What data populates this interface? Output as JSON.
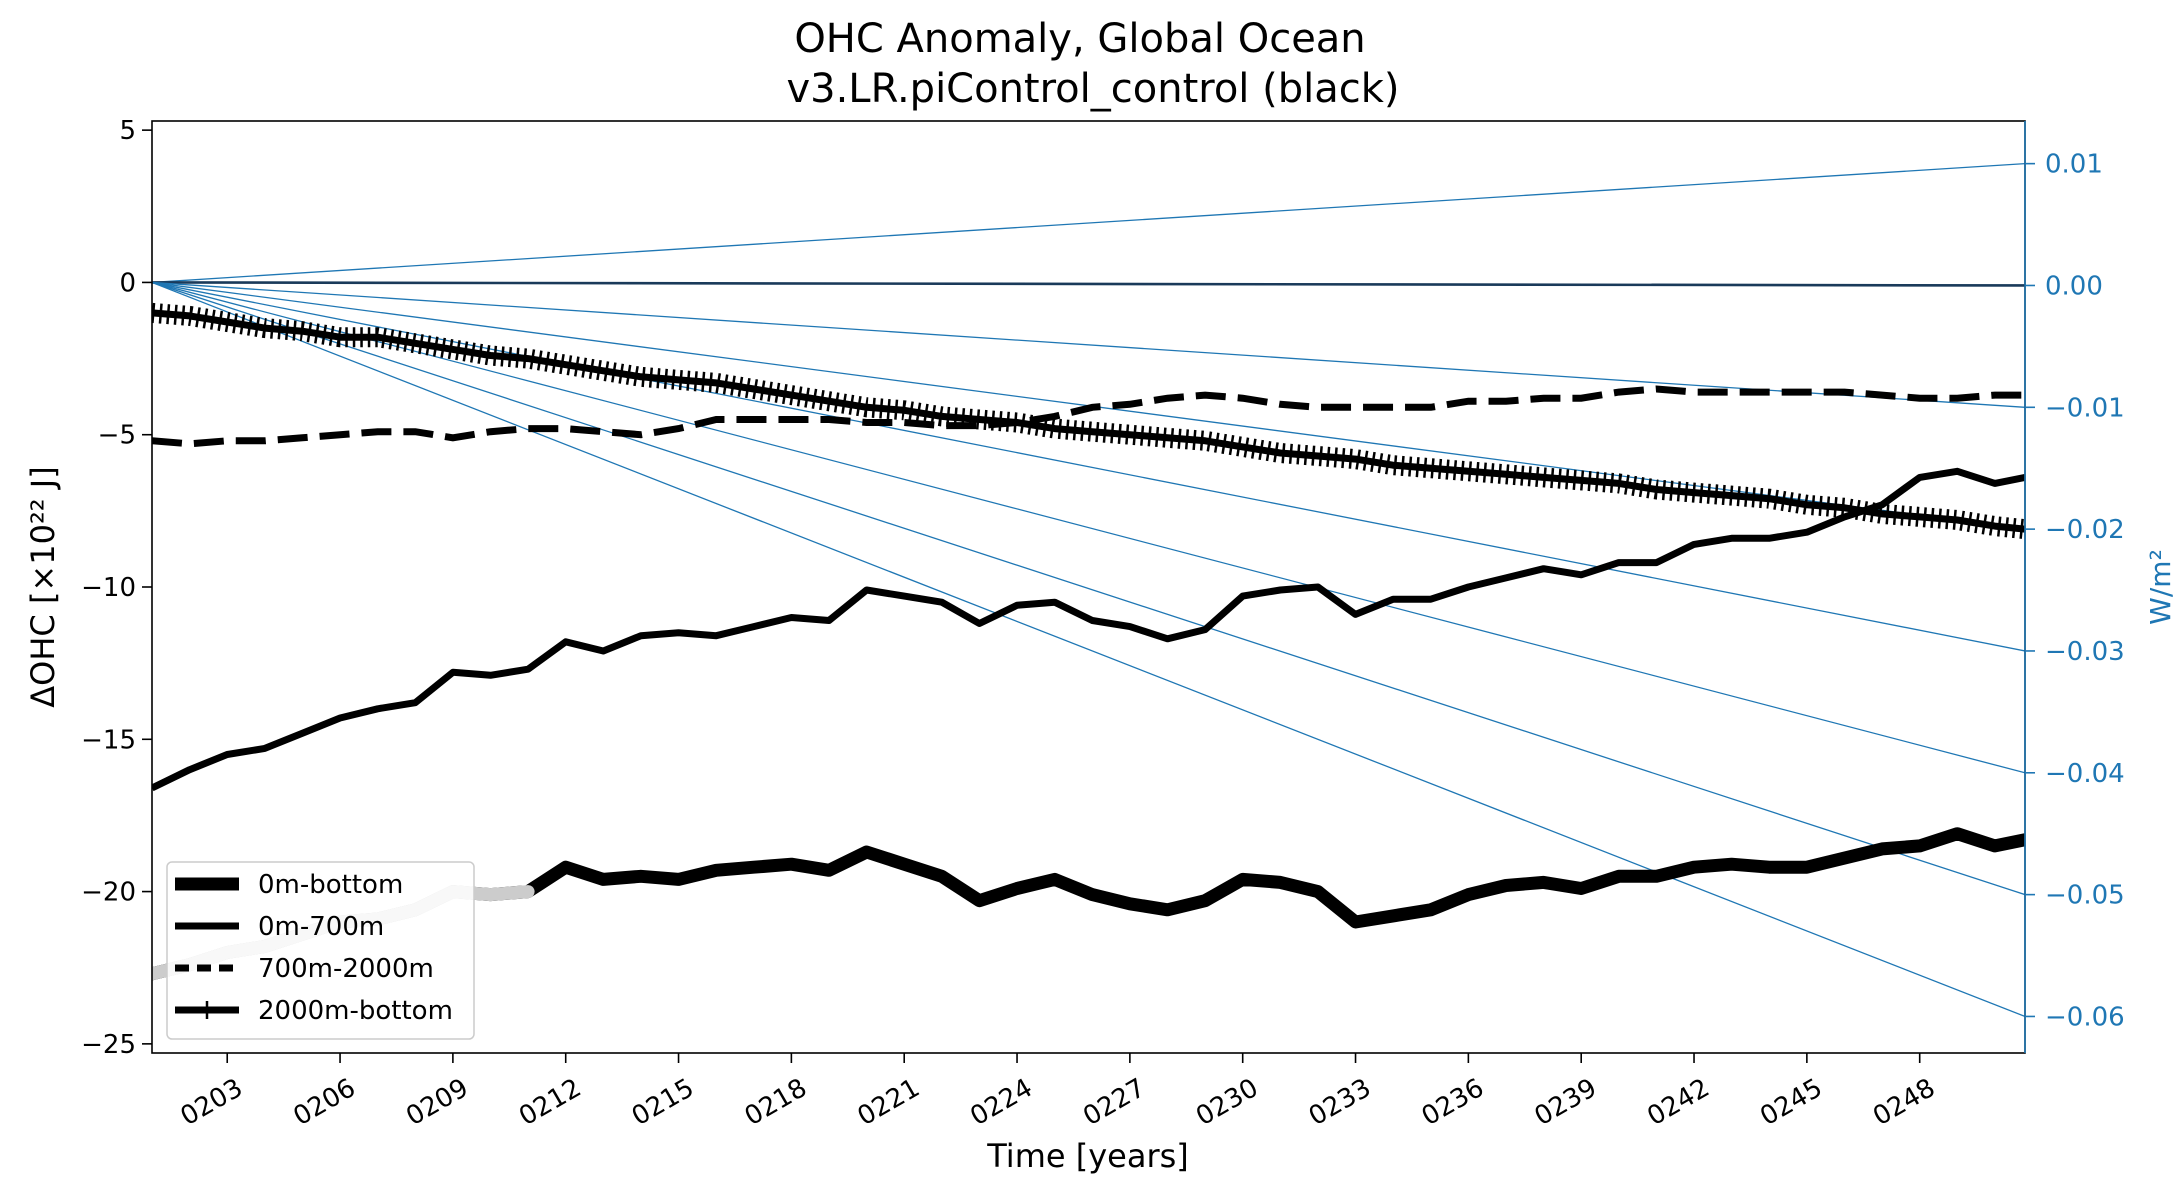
{
  "chart_data": {
    "type": "line",
    "title": "OHC Anomaly, Global Ocean",
    "subtitle": "v3.LR.piControl_control (black)",
    "xlabel": "Time [years]",
    "ylabel": "ΔOHC [×10²² J]",
    "ylabel_right": "W/m²",
    "xlim": [
      201,
      250.8
    ],
    "ylim": [
      -25.3,
      5.3
    ],
    "ylim_right": [
      -0.063,
      0.0135
    ],
    "x_ticks": [
      "0203",
      "0206",
      "0209",
      "0212",
      "0215",
      "0218",
      "0221",
      "0224",
      "0227",
      "0230",
      "0233",
      "0236",
      "0239",
      "0242",
      "0245",
      "0248"
    ],
    "x_tick_values": [
      203,
      206,
      209,
      212,
      215,
      218,
      221,
      224,
      227,
      230,
      233,
      236,
      239,
      242,
      245,
      248
    ],
    "y_ticks": [
      "5",
      "0",
      "−5",
      "−10",
      "−15",
      "−20",
      "−25"
    ],
    "y_tick_values": [
      5,
      0,
      -5,
      -10,
      -15,
      -20,
      -25
    ],
    "y_right_ticks": [
      "0.01",
      "0.00",
      "−0.01",
      "−0.02",
      "−0.03",
      "−0.04",
      "−0.05",
      "−0.06"
    ],
    "y_right_tick_values": [
      0.01,
      0.0,
      -0.01,
      -0.02,
      -0.03,
      -0.04,
      -0.05,
      -0.06
    ],
    "reference_slopes_wm2": [
      0.01,
      0.0,
      -0.01,
      -0.02,
      -0.03,
      -0.04,
      -0.05,
      -0.06
    ],
    "legend_position": "lower-left",
    "colors": {
      "series": "#000000",
      "series_shadow": "#cccccc",
      "right_axis": "#1f77b4",
      "zero_line": "#1a3a5a"
    },
    "series": [
      {
        "name": "0m-bottom",
        "style": "solid-thick",
        "x": [
          201,
          202,
          203,
          204,
          205,
          206,
          207,
          208,
          209,
          210,
          211,
          212,
          213,
          214,
          215,
          216,
          217,
          218,
          219,
          220,
          221,
          222,
          223,
          224,
          225,
          226,
          227,
          228,
          229,
          230,
          231,
          232,
          233,
          234,
          235,
          236,
          237,
          238,
          239,
          240,
          241,
          242,
          243,
          244,
          245,
          246,
          247,
          248,
          249,
          250,
          250.8
        ],
        "y": [
          -22.7,
          -22.4,
          -22.0,
          -21.8,
          -21.4,
          -21.0,
          -20.9,
          -20.6,
          -20.0,
          -20.1,
          -20.0,
          -19.2,
          -19.6,
          -19.5,
          -19.6,
          -19.3,
          -19.2,
          -19.1,
          -19.3,
          -18.7,
          -19.1,
          -19.5,
          -20.3,
          -19.9,
          -19.6,
          -20.1,
          -20.4,
          -20.6,
          -20.3,
          -19.6,
          -19.7,
          -20.0,
          -21.0,
          -20.8,
          -20.6,
          -20.1,
          -19.8,
          -19.7,
          -19.9,
          -19.5,
          -19.5,
          -19.2,
          -19.1,
          -19.2,
          -19.2,
          -18.9,
          -18.6,
          -18.5,
          -18.1,
          -18.5,
          -18.3
        ]
      },
      {
        "name": "0m-700m",
        "style": "solid",
        "x": [
          201,
          202,
          203,
          204,
          205,
          206,
          207,
          208,
          209,
          210,
          211,
          212,
          213,
          214,
          215,
          216,
          217,
          218,
          219,
          220,
          221,
          222,
          223,
          224,
          225,
          226,
          227,
          228,
          229,
          230,
          231,
          232,
          233,
          234,
          235,
          236,
          237,
          238,
          239,
          240,
          241,
          242,
          243,
          244,
          245,
          246,
          247,
          248,
          249,
          250,
          250.8
        ],
        "y": [
          -16.6,
          -16.0,
          -15.5,
          -15.3,
          -14.8,
          -14.3,
          -14.0,
          -13.8,
          -12.8,
          -12.9,
          -12.7,
          -11.8,
          -12.1,
          -11.6,
          -11.5,
          -11.6,
          -11.3,
          -11.0,
          -11.1,
          -10.1,
          -10.3,
          -10.5,
          -11.2,
          -10.6,
          -10.5,
          -11.1,
          -11.3,
          -11.7,
          -11.4,
          -10.3,
          -10.1,
          -10.0,
          -10.9,
          -10.4,
          -10.4,
          -10.0,
          -9.7,
          -9.4,
          -9.6,
          -9.2,
          -9.2,
          -8.6,
          -8.4,
          -8.4,
          -8.2,
          -7.7,
          -7.3,
          -6.4,
          -6.2,
          -6.6,
          -6.4
        ]
      },
      {
        "name": "700m-2000m",
        "style": "dashed",
        "x": [
          201,
          202,
          203,
          204,
          205,
          206,
          207,
          208,
          209,
          210,
          211,
          212,
          213,
          214,
          215,
          216,
          217,
          218,
          219,
          220,
          221,
          222,
          223,
          224,
          225,
          226,
          227,
          228,
          229,
          230,
          231,
          232,
          233,
          234,
          235,
          236,
          237,
          238,
          239,
          240,
          241,
          242,
          243,
          244,
          245,
          246,
          247,
          248,
          249,
          250,
          250.8
        ],
        "y": [
          -5.2,
          -5.3,
          -5.2,
          -5.2,
          -5.1,
          -5.0,
          -4.9,
          -4.9,
          -5.1,
          -4.9,
          -4.8,
          -4.8,
          -4.9,
          -5.0,
          -4.8,
          -4.5,
          -4.5,
          -4.5,
          -4.5,
          -4.6,
          -4.6,
          -4.7,
          -4.7,
          -4.6,
          -4.4,
          -4.1,
          -4.0,
          -3.8,
          -3.7,
          -3.8,
          -4.0,
          -4.1,
          -4.1,
          -4.1,
          -4.1,
          -3.9,
          -3.9,
          -3.8,
          -3.8,
          -3.6,
          -3.5,
          -3.6,
          -3.6,
          -3.6,
          -3.6,
          -3.6,
          -3.7,
          -3.8,
          -3.8,
          -3.7,
          -3.7
        ]
      },
      {
        "name": "2000m-bottom",
        "style": "solid-plus",
        "x": [
          201,
          202,
          203,
          204,
          205,
          206,
          207,
          208,
          209,
          210,
          211,
          212,
          213,
          214,
          215,
          216,
          217,
          218,
          219,
          220,
          221,
          222,
          223,
          224,
          225,
          226,
          227,
          228,
          229,
          230,
          231,
          232,
          233,
          234,
          235,
          236,
          237,
          238,
          239,
          240,
          241,
          242,
          243,
          244,
          245,
          246,
          247,
          248,
          249,
          250,
          250.8
        ],
        "y": [
          -1.0,
          -1.1,
          -1.3,
          -1.5,
          -1.6,
          -1.8,
          -1.8,
          -2.0,
          -2.2,
          -2.4,
          -2.5,
          -2.7,
          -2.9,
          -3.1,
          -3.2,
          -3.3,
          -3.5,
          -3.7,
          -3.9,
          -4.1,
          -4.2,
          -4.4,
          -4.5,
          -4.6,
          -4.8,
          -4.9,
          -5.0,
          -5.1,
          -5.2,
          -5.4,
          -5.6,
          -5.7,
          -5.8,
          -6.0,
          -6.1,
          -6.2,
          -6.3,
          -6.4,
          -6.5,
          -6.6,
          -6.8,
          -6.9,
          -7.0,
          -7.1,
          -7.3,
          -7.4,
          -7.6,
          -7.7,
          -7.8,
          -8.0,
          -8.1
        ]
      }
    ]
  }
}
